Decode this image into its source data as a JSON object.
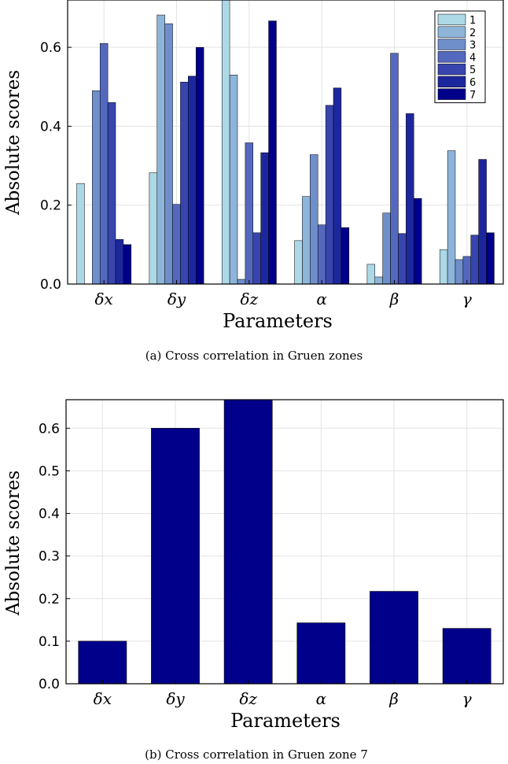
{
  "colors": {
    "zones": [
      "#add8e6",
      "#8db4d9",
      "#6f8fcb",
      "#5468be",
      "#3845ae",
      "#1d279d",
      "#00008b"
    ],
    "bar_b": "#00008b",
    "grid": "#e3e3e3",
    "axis": "#000000"
  },
  "chart_data": [
    {
      "id": "a",
      "type": "bar",
      "caption": "(a)  Cross correlation in Gruen zones",
      "xlabel": "Parameters",
      "ylabel": "Absolute scores",
      "categories": [
        "δx",
        "δy",
        "δz",
        "α",
        "β",
        "γ"
      ],
      "ylim": [
        0,
        0.72
      ],
      "yticks": [
        0.0,
        0.2,
        0.4,
        0.6
      ],
      "ytick_labels": [
        "0.0",
        "0.2",
        "0.4",
        "0.6"
      ],
      "grid": true,
      "legend_position": "top-right",
      "series": [
        {
          "name": "1",
          "values": [
            0.255,
            0.282,
            0.72,
            0.11,
            0.05,
            0.087
          ]
        },
        {
          "name": "2",
          "values": [
            0.0,
            0.682,
            0.53,
            0.222,
            0.018,
            0.338
          ]
        },
        {
          "name": "3",
          "values": [
            0.49,
            0.66,
            0.012,
            0.328,
            0.18,
            0.062
          ]
        },
        {
          "name": "4",
          "values": [
            0.61,
            0.202,
            0.358,
            0.15,
            0.585,
            0.07
          ]
        },
        {
          "name": "5",
          "values": [
            0.46,
            0.512,
            0.13,
            0.453,
            0.128,
            0.124
          ]
        },
        {
          "name": "6",
          "values": [
            0.113,
            0.527,
            0.333,
            0.497,
            0.432,
            0.316
          ]
        },
        {
          "name": "7",
          "values": [
            0.1,
            0.6,
            0.667,
            0.143,
            0.217,
            0.13
          ]
        }
      ]
    },
    {
      "id": "b",
      "type": "bar",
      "caption": "(b)  Cross correlation in Gruen zone 7",
      "xlabel": "Parameters",
      "ylabel": "Absolute scores",
      "categories": [
        "δx",
        "δy",
        "δz",
        "α",
        "β",
        "γ"
      ],
      "values": [
        0.1,
        0.6,
        0.667,
        0.143,
        0.217,
        0.13
      ],
      "ylim": [
        0,
        0.667
      ],
      "yticks": [
        0.0,
        0.1,
        0.2,
        0.3,
        0.4,
        0.5,
        0.6
      ],
      "ytick_labels": [
        "0.0",
        "0.1",
        "0.2",
        "0.3",
        "0.4",
        "0.5",
        "0.6"
      ],
      "grid": true
    }
  ]
}
